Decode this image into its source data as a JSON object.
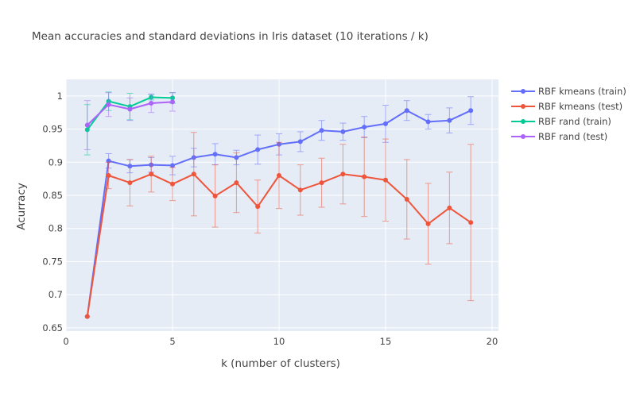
{
  "chart_data": {
    "type": "line",
    "title": "Mean accuracies and standard deviations in Iris dataset (10 iterations / k)",
    "xlabel": "k (number of clusters)",
    "ylabel": "Acurracy",
    "xlim": [
      0,
      20.3
    ],
    "ylim": [
      0.645,
      1.025
    ],
    "x_ticks": [
      0,
      5,
      10,
      15,
      20
    ],
    "y_ticks": [
      0.65,
      0.7,
      0.75,
      0.8,
      0.85,
      0.9,
      0.95,
      1
    ],
    "x_tick_labels": [
      "0",
      "5",
      "10",
      "15",
      "20"
    ],
    "y_tick_labels": [
      "0.65",
      "0.7",
      "0.75",
      "0.8",
      "0.85",
      "0.9",
      "0.95",
      "1"
    ],
    "grid": true,
    "legend_position": "right",
    "plot_bgcolor": "#e5ecf6",
    "series": [
      {
        "name": "RBF kmeans (train)",
        "color": "#636efa",
        "x": [
          1,
          2,
          3,
          4,
          5,
          6,
          7,
          8,
          9,
          10,
          11,
          12,
          13,
          14,
          15,
          16,
          17,
          18,
          19
        ],
        "y": [
          0.667,
          0.902,
          0.894,
          0.896,
          0.895,
          0.907,
          0.912,
          0.907,
          0.919,
          0.927,
          0.931,
          0.948,
          0.946,
          0.953,
          0.958,
          0.978,
          0.961,
          0.963,
          0.978
        ],
        "err": [
          0,
          0.011,
          0.01,
          0.011,
          0.014,
          0.014,
          0.016,
          0.011,
          0.022,
          0.016,
          0.015,
          0.015,
          0.013,
          0.016,
          0.028,
          0.015,
          0.011,
          0.019,
          0.021
        ]
      },
      {
        "name": "RBF kmeans (test)",
        "color": "#ef553b",
        "x": [
          1,
          2,
          3,
          4,
          5,
          6,
          7,
          8,
          9,
          10,
          11,
          12,
          13,
          14,
          15,
          16,
          17,
          18,
          19
        ],
        "y": [
          0.667,
          0.88,
          0.869,
          0.882,
          0.867,
          0.882,
          0.849,
          0.869,
          0.833,
          0.88,
          0.858,
          0.869,
          0.882,
          0.878,
          0.873,
          0.844,
          0.807,
          0.831,
          0.809
        ],
        "err": [
          0,
          0.02,
          0.035,
          0.027,
          0.025,
          0.063,
          0.047,
          0.045,
          0.04,
          0.05,
          0.038,
          0.037,
          0.045,
          0.06,
          0.062,
          0.06,
          0.061,
          0.054,
          0.118
        ]
      },
      {
        "name": "RBF rand (train)",
        "color": "#00cc96",
        "x": [
          1,
          2,
          3,
          4,
          5
        ],
        "y": [
          0.949,
          0.992,
          0.984,
          0.998,
          0.997
        ],
        "err": [
          0.038,
          0.014,
          0.02,
          0.004,
          0.008
        ]
      },
      {
        "name": "RBF rand (test)",
        "color": "#ab63fa",
        "x": [
          1,
          2,
          3,
          4,
          5
        ],
        "y": [
          0.956,
          0.987,
          0.98,
          0.989,
          0.991
        ],
        "err": [
          0.037,
          0.018,
          0.017,
          0.014,
          0.014
        ]
      }
    ]
  }
}
